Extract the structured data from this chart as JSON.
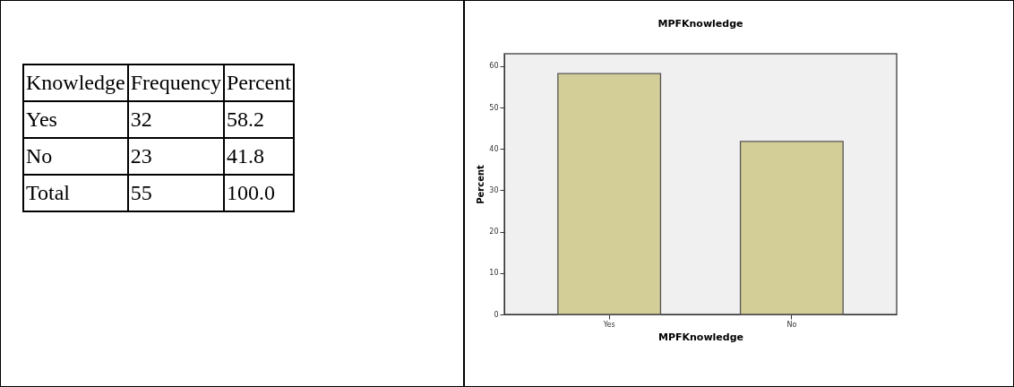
{
  "chart_data": [
    {
      "type": "other",
      "ylabel": "Knowledge",
      "categories": [
        "Frequency",
        "Percent"
      ],
      "y_categories": [
        "Yes",
        "No",
        "Total"
      ],
      "cell_labels": [
        [
          "32",
          "58.2"
        ],
        [
          "23",
          "41.8"
        ],
        [
          "55",
          "100.0"
        ]
      ]
    },
    {
      "type": "bar",
      "title": "MPFKnowledge",
      "xlabel": "MPFKnowledge",
      "ylabel": "Percent",
      "categories": [
        "Yes",
        "No"
      ],
      "values": [
        58.2,
        41.8
      ],
      "color": "#d3ce97",
      "ylim": [
        0,
        63
      ],
      "yticks": [
        0,
        10,
        20,
        30,
        40,
        50,
        60
      ],
      "grid": false
    }
  ]
}
